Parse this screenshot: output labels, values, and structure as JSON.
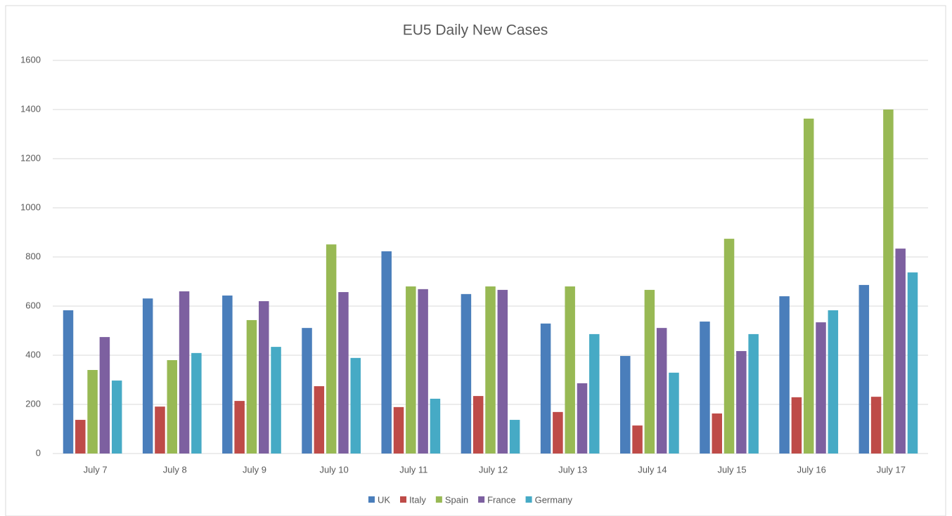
{
  "chart_data": {
    "type": "bar",
    "title": "EU5 Daily New Cases",
    "categories": [
      "July 7",
      "July 8",
      "July 9",
      "July 10",
      "July 11",
      "July 12",
      "July 13",
      "July 14",
      "July 15",
      "July 16",
      "July 17"
    ],
    "series": [
      {
        "name": "UK",
        "color": "#4a7ebb",
        "values": [
          583,
          631,
          643,
          511,
          823,
          649,
          529,
          397,
          537,
          640,
          686
        ]
      },
      {
        "name": "Italy",
        "color": "#be4b48",
        "values": [
          137,
          191,
          214,
          274,
          189,
          234,
          169,
          114,
          163,
          229,
          231
        ]
      },
      {
        "name": "Spain",
        "color": "#98b954",
        "values": [
          340,
          380,
          543,
          851,
          680,
          680,
          680,
          666,
          874,
          1363,
          1400
        ]
      },
      {
        "name": "France",
        "color": "#7d60a0",
        "values": [
          474,
          660,
          620,
          657,
          669,
          666,
          286,
          511,
          417,
          534,
          834
        ]
      },
      {
        "name": "Germany",
        "color": "#46aac5",
        "values": [
          297,
          409,
          434,
          389,
          223,
          137,
          486,
          329,
          486,
          583,
          737
        ]
      }
    ],
    "ylim": [
      0,
      1600
    ],
    "yticks": [
      0,
      200,
      400,
      600,
      800,
      1000,
      1200,
      1400,
      1600
    ],
    "grid": true,
    "legend": "bottom"
  }
}
